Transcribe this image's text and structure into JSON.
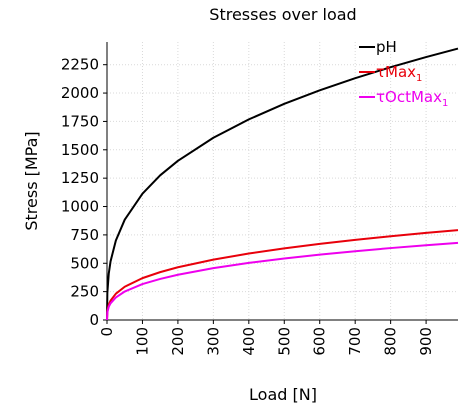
{
  "chart_data": {
    "type": "line",
    "title": "Stresses over load",
    "xlabel": "Load [N]",
    "ylabel": "Stress [MPa]",
    "xlim": [
      0,
      990
    ],
    "ylim": [
      0,
      2450
    ],
    "xticks": [
      "0",
      "100",
      "200",
      "300",
      "400",
      "500",
      "600",
      "700",
      "800",
      "900"
    ],
    "yticks": [
      "0",
      "250",
      "500",
      "750",
      "1000",
      "1250",
      "1500",
      "1750",
      "2000",
      "2250"
    ],
    "grid": true,
    "legend_position": "top-right",
    "x": [
      0,
      1,
      5,
      10,
      25,
      50,
      100,
      150,
      200,
      300,
      400,
      500,
      600,
      700,
      800,
      900,
      990
    ],
    "series": [
      {
        "name_main": "pH",
        "name_sub": "",
        "color": "#000000",
        "values": [
          0,
          240,
          410,
          517,
          701,
          884,
          1113,
          1275,
          1403,
          1606,
          1768,
          1905,
          2024,
          2131,
          2228,
          2317,
          2392
        ]
      },
      {
        "name_main": "τMax",
        "name_sub": "1",
        "color": "#e8000b",
        "values": [
          0,
          80,
          136,
          171,
          232,
          293,
          369,
          422,
          465,
          532,
          586,
          631,
          671,
          706,
          738,
          768,
          792
        ]
      },
      {
        "name_main": "τOctMax",
        "name_sub": "1",
        "color": "#ee00ee",
        "values": [
          0,
          68,
          117,
          147,
          199,
          251,
          317,
          362,
          399,
          457,
          503,
          542,
          576,
          606,
          634,
          659,
          680
        ]
      }
    ]
  }
}
